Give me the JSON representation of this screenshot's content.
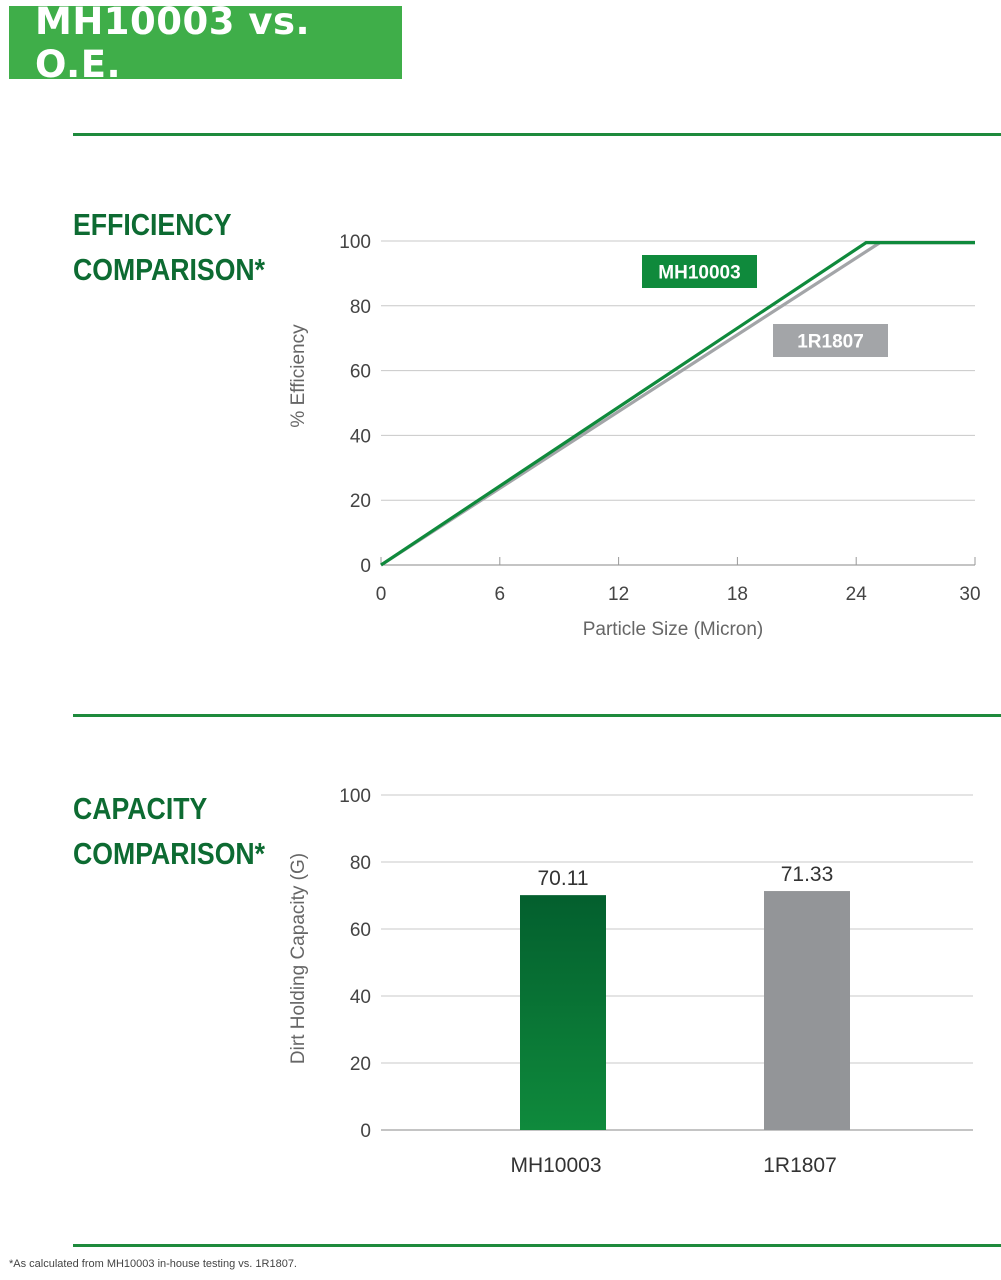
{
  "header": {
    "title": "MH10003 vs. O.E."
  },
  "sections": {
    "efficiency": {
      "title_line1": "EFFICIENCY",
      "title_line2": "COMPARISON*"
    },
    "capacity": {
      "title_line1": "CAPACITY",
      "title_line2": "COMPARISON*"
    }
  },
  "footnote": "*As calculated from MH10003 in-house testing vs. 1R1807.",
  "colors": {
    "brand_green": "#3fae49",
    "dark_green": "#0d6b32",
    "line_green": "#0f8a3c",
    "gray": "#a3a5a8",
    "bar_gray": "#939598"
  },
  "chart_data": [
    {
      "type": "line",
      "xlabel": "Particle Size (Micron)",
      "ylabel": "% Efficiency",
      "xlim": [
        0,
        30
      ],
      "ylim": [
        0,
        100
      ],
      "x_ticks": [
        "0",
        "6",
        "12",
        "18",
        "24",
        "30"
      ],
      "y_ticks": [
        "0",
        "20",
        "40",
        "60",
        "80",
        "100"
      ],
      "grid": true,
      "series": [
        {
          "name": "MH10003",
          "color": "#0f8a3c",
          "points": [
            [
              0,
              0
            ],
            [
              24.5,
              99.5
            ],
            [
              30,
              99.5
            ]
          ]
        },
        {
          "name": "1R1807",
          "color": "#a3a5a8",
          "points": [
            [
              0,
              0
            ],
            [
              25.2,
              99.5
            ],
            [
              30,
              99.5
            ]
          ]
        }
      ]
    },
    {
      "type": "bar",
      "categories": [
        "MH10003",
        "1R1807"
      ],
      "values": [
        70.11,
        71.33
      ],
      "value_labels": [
        "70.11",
        "71.33"
      ],
      "ylabel": "Dirt Holding Capacity (G)",
      "ylim": [
        0,
        100
      ],
      "y_ticks": [
        "0",
        "20",
        "40",
        "60",
        "80",
        "100"
      ],
      "grid": true,
      "colors": [
        "#0f8a3c",
        "#939598"
      ]
    }
  ]
}
